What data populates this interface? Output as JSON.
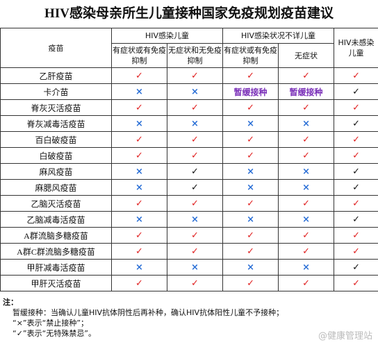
{
  "header": {
    "title": "HIV感染母亲所生儿童接种国家免疫规划疫苗建议"
  },
  "table": {
    "vaccine_header": "疫苗",
    "groups": [
      {
        "label": "HIV感染儿童",
        "subs": [
          "有症状或有免疫抑制",
          "无症状和无免疫抑制"
        ]
      },
      {
        "label": "HIV感染状况不详儿童",
        "subs": [
          "有症状或有免疫抑制",
          "无症状"
        ]
      },
      {
        "label": "HIV未感染儿童",
        "subs": []
      }
    ],
    "rows": [
      {
        "name": "乙肝疫苗",
        "cells": [
          {
            "text": "✓",
            "color": "#e02020"
          },
          {
            "text": "✓",
            "color": "#e02020"
          },
          {
            "text": "✓",
            "color": "#e02020"
          },
          {
            "text": "✓",
            "color": "#e02020"
          },
          {
            "text": "✓",
            "color": "#e02020"
          }
        ]
      },
      {
        "name": "卡介苗",
        "cells": [
          {
            "text": "×",
            "color": "#2a6fd6"
          },
          {
            "text": "×",
            "color": "#2a6fd6"
          },
          {
            "text": "暂缓接种",
            "color": "#7a2fb8"
          },
          {
            "text": "暂缓接种",
            "color": "#7a2fb8"
          },
          {
            "text": "✓",
            "color": "#111111"
          }
        ]
      },
      {
        "name": "脊灰灭活疫苗",
        "cells": [
          {
            "text": "✓",
            "color": "#e02020"
          },
          {
            "text": "✓",
            "color": "#e02020"
          },
          {
            "text": "✓",
            "color": "#e02020"
          },
          {
            "text": "✓",
            "color": "#e02020"
          },
          {
            "text": "✓",
            "color": "#e02020"
          }
        ]
      },
      {
        "name": "脊灰减毒活疫苗",
        "cells": [
          {
            "text": "×",
            "color": "#2a6fd6"
          },
          {
            "text": "×",
            "color": "#2a6fd6"
          },
          {
            "text": "×",
            "color": "#2a6fd6"
          },
          {
            "text": "×",
            "color": "#2a6fd6"
          },
          {
            "text": "✓",
            "color": "#111111"
          }
        ]
      },
      {
        "name": "百白破疫苗",
        "cells": [
          {
            "text": "✓",
            "color": "#e02020"
          },
          {
            "text": "✓",
            "color": "#e02020"
          },
          {
            "text": "✓",
            "color": "#e02020"
          },
          {
            "text": "✓",
            "color": "#e02020"
          },
          {
            "text": "✓",
            "color": "#e02020"
          }
        ]
      },
      {
        "name": "白破疫苗",
        "cells": [
          {
            "text": "✓",
            "color": "#e02020"
          },
          {
            "text": "✓",
            "color": "#e02020"
          },
          {
            "text": "✓",
            "color": "#e02020"
          },
          {
            "text": "✓",
            "color": "#e02020"
          },
          {
            "text": "✓",
            "color": "#e02020"
          }
        ]
      },
      {
        "name": "麻风疫苗",
        "cells": [
          {
            "text": "×",
            "color": "#2a6fd6"
          },
          {
            "text": "✓",
            "color": "#111111"
          },
          {
            "text": "×",
            "color": "#2a6fd6"
          },
          {
            "text": "×",
            "color": "#2a6fd6"
          },
          {
            "text": "✓",
            "color": "#111111"
          }
        ]
      },
      {
        "name": "麻腮风疫苗",
        "cells": [
          {
            "text": "×",
            "color": "#2a6fd6"
          },
          {
            "text": "✓",
            "color": "#111111"
          },
          {
            "text": "×",
            "color": "#2a6fd6"
          },
          {
            "text": "×",
            "color": "#2a6fd6"
          },
          {
            "text": "✓",
            "color": "#111111"
          }
        ]
      },
      {
        "name": "乙脑灭活疫苗",
        "cells": [
          {
            "text": "✓",
            "color": "#e02020"
          },
          {
            "text": "✓",
            "color": "#e02020"
          },
          {
            "text": "✓",
            "color": "#e02020"
          },
          {
            "text": "✓",
            "color": "#e02020"
          },
          {
            "text": "✓",
            "color": "#e02020"
          }
        ]
      },
      {
        "name": "乙脑减毒活疫苗",
        "cells": [
          {
            "text": "×",
            "color": "#2a6fd6"
          },
          {
            "text": "×",
            "color": "#2a6fd6"
          },
          {
            "text": "×",
            "color": "#2a6fd6"
          },
          {
            "text": "×",
            "color": "#2a6fd6"
          },
          {
            "text": "✓",
            "color": "#111111"
          }
        ]
      },
      {
        "name": "A群流脑多糖疫苗",
        "cells": [
          {
            "text": "✓",
            "color": "#e02020"
          },
          {
            "text": "✓",
            "color": "#e02020"
          },
          {
            "text": "✓",
            "color": "#e02020"
          },
          {
            "text": "✓",
            "color": "#e02020"
          },
          {
            "text": "✓",
            "color": "#e02020"
          }
        ]
      },
      {
        "name": "A群C群流脑多糖疫苗",
        "cells": [
          {
            "text": "✓",
            "color": "#e02020"
          },
          {
            "text": "✓",
            "color": "#e02020"
          },
          {
            "text": "✓",
            "color": "#e02020"
          },
          {
            "text": "✓",
            "color": "#e02020"
          },
          {
            "text": "✓",
            "color": "#e02020"
          }
        ]
      },
      {
        "name": "甲肝减毒活疫苗",
        "cells": [
          {
            "text": "×",
            "color": "#2a6fd6"
          },
          {
            "text": "×",
            "color": "#2a6fd6"
          },
          {
            "text": "×",
            "color": "#2a6fd6"
          },
          {
            "text": "×",
            "color": "#2a6fd6"
          },
          {
            "text": "✓",
            "color": "#111111"
          }
        ]
      },
      {
        "name": "甲肝灭活疫苗",
        "cells": [
          {
            "text": "✓",
            "color": "#e02020"
          },
          {
            "text": "✓",
            "color": "#e02020"
          },
          {
            "text": "✓",
            "color": "#e02020"
          },
          {
            "text": "✓",
            "color": "#e02020"
          },
          {
            "text": "✓",
            "color": "#e02020"
          }
        ]
      }
    ]
  },
  "notes": {
    "heading": "注：",
    "lines": [
      "暂缓接种：当确认儿童HIV抗体阴性后再补种，确认HIV抗体阳性儿童不予接种；",
      "“×”表示“禁止接种”；",
      "“✓”表示“无特殊禁忌”。"
    ]
  },
  "watermark": "@健康管理站"
}
